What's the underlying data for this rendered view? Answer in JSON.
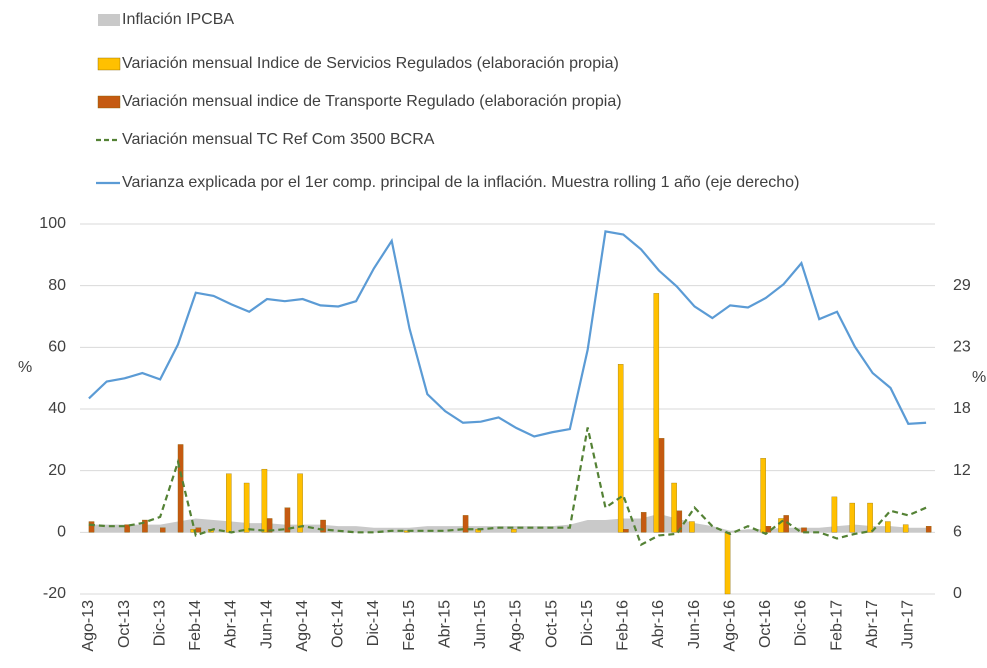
{
  "chart_data": {
    "type": "combo",
    "categories": [
      "Ago-13",
      null,
      "Oct-13",
      null,
      "Dic-13",
      null,
      "Feb-14",
      null,
      "Abr-14",
      null,
      "Jun-14",
      null,
      "Ago-14",
      null,
      "Oct-14",
      null,
      "Dic-14",
      null,
      "Feb-15",
      null,
      "Abr-15",
      null,
      "Jun-15",
      null,
      "Ago-15",
      null,
      "Oct-15",
      null,
      "Dic-15",
      null,
      "Feb-16",
      null,
      "Abr-16",
      null,
      "Jun-16",
      null,
      "Ago-16",
      null,
      "Oct-16",
      null,
      "Dic-16",
      null,
      "Feb-17",
      null,
      "Abr-17",
      null,
      "Jun-17",
      null
    ],
    "y_label": "%",
    "y2_label": "%",
    "ylim": [
      -20,
      100
    ],
    "yticks": [
      -20,
      0,
      20,
      40,
      60,
      80,
      100
    ],
    "y2lim": [
      0,
      35
    ],
    "y2ticks": [
      0,
      {
        "value": 5.83,
        "label": "6"
      },
      {
        "value": 11.67,
        "label": "12"
      },
      {
        "value": 17.5,
        "label": "18"
      },
      {
        "value": 23.33,
        "label": "23"
      },
      {
        "value": 29.17,
        "label": "29"
      }
    ],
    "grid": true,
    "legend": "top",
    "series": [
      {
        "name": "Inflación IPCBA",
        "type": "area",
        "color": "#c9c9c9",
        "values": [
          2.5,
          2.5,
          2.5,
          2.5,
          2.5,
          3.5,
          4.5,
          4,
          3.5,
          3,
          3,
          2.5,
          2.5,
          2.5,
          2,
          2,
          1.5,
          1.5,
          1.5,
          2,
          2,
          2,
          2,
          2,
          2,
          2,
          2,
          2.5,
          4,
          4,
          4.5,
          4.5,
          6,
          4.5,
          3,
          2,
          0.5,
          1,
          1,
          1.5,
          1.5,
          1.5,
          2,
          2.5,
          2,
          2,
          1.5,
          1.5
        ]
      },
      {
        "name": "Variación mensual Indice de Servicios Regulados (elaboración propia)",
        "type": "bar",
        "color": "#ffc000",
        "values": [
          0,
          0,
          0,
          0,
          0,
          0,
          1,
          1,
          19,
          16,
          20.5,
          0,
          19,
          0,
          0,
          0,
          0,
          0,
          0.5,
          0,
          0,
          0,
          1,
          0,
          1,
          0,
          0,
          0,
          0,
          0,
          54.5,
          0,
          77.5,
          16,
          3.5,
          0,
          -20,
          0,
          24,
          4.5,
          0,
          0,
          11.5,
          9.5,
          9.5,
          3.5,
          2.5,
          0
        ]
      },
      {
        "name": "Variación mensual indice de Transporte Regulado (elaboración propia)",
        "type": "bar",
        "color": "#c55a11",
        "values": [
          3.5,
          0,
          2.5,
          4,
          1.5,
          28.5,
          1.5,
          0,
          0,
          0,
          4.5,
          8,
          0,
          4,
          0,
          0,
          0,
          0,
          0,
          0,
          0,
          5.5,
          0,
          0,
          0,
          0,
          0,
          0,
          0,
          0,
          1,
          6.5,
          30.5,
          7,
          0,
          0,
          0,
          0,
          2,
          5.5,
          1.5,
          0,
          0,
          0,
          0,
          0,
          0,
          2
        ]
      },
      {
        "name": "Variación mensual TC Ref Com 3500 BCRA",
        "type": "line",
        "dashed": true,
        "color": "#548235",
        "values": [
          2.5,
          2,
          2,
          3,
          5,
          22.8,
          -1,
          1,
          0,
          1,
          0.5,
          1,
          2,
          1,
          0.5,
          0,
          0,
          0.5,
          0.5,
          0.5,
          0.5,
          1,
          1,
          1.5,
          1.5,
          1.5,
          1.5,
          1.5,
          34,
          8,
          12,
          -4,
          -1,
          -0.5,
          8,
          2,
          -0.5,
          2,
          -0.5,
          4,
          0,
          0,
          -2,
          -0.5,
          0.5,
          7,
          5.5,
          8
        ]
      },
      {
        "name": "Varianza explicada por el 1er comp. principal de la inflación. Muestra rolling 1 año (eje derecho)",
        "type": "line",
        "axis": "y2",
        "color": "#5b9bd5",
        "values": [
          18.5,
          20.1,
          20.4,
          20.9,
          20.3,
          23.6,
          28.5,
          28.2,
          27.4,
          26.7,
          27.9,
          27.7,
          27.9,
          27.3,
          27.2,
          27.7,
          30.8,
          33.4,
          25.1,
          18.9,
          17.3,
          16.2,
          16.3,
          16.7,
          15.7,
          14.9,
          15.3,
          15.6,
          23.1,
          34.3,
          34.0,
          32.6,
          30.6,
          29.1,
          27.2,
          26.1,
          27.3,
          27.1,
          28.0,
          29.3,
          31.3,
          26.0,
          26.7,
          23.4,
          20.9,
          19.5,
          16.1,
          16.2
        ]
      }
    ]
  }
}
